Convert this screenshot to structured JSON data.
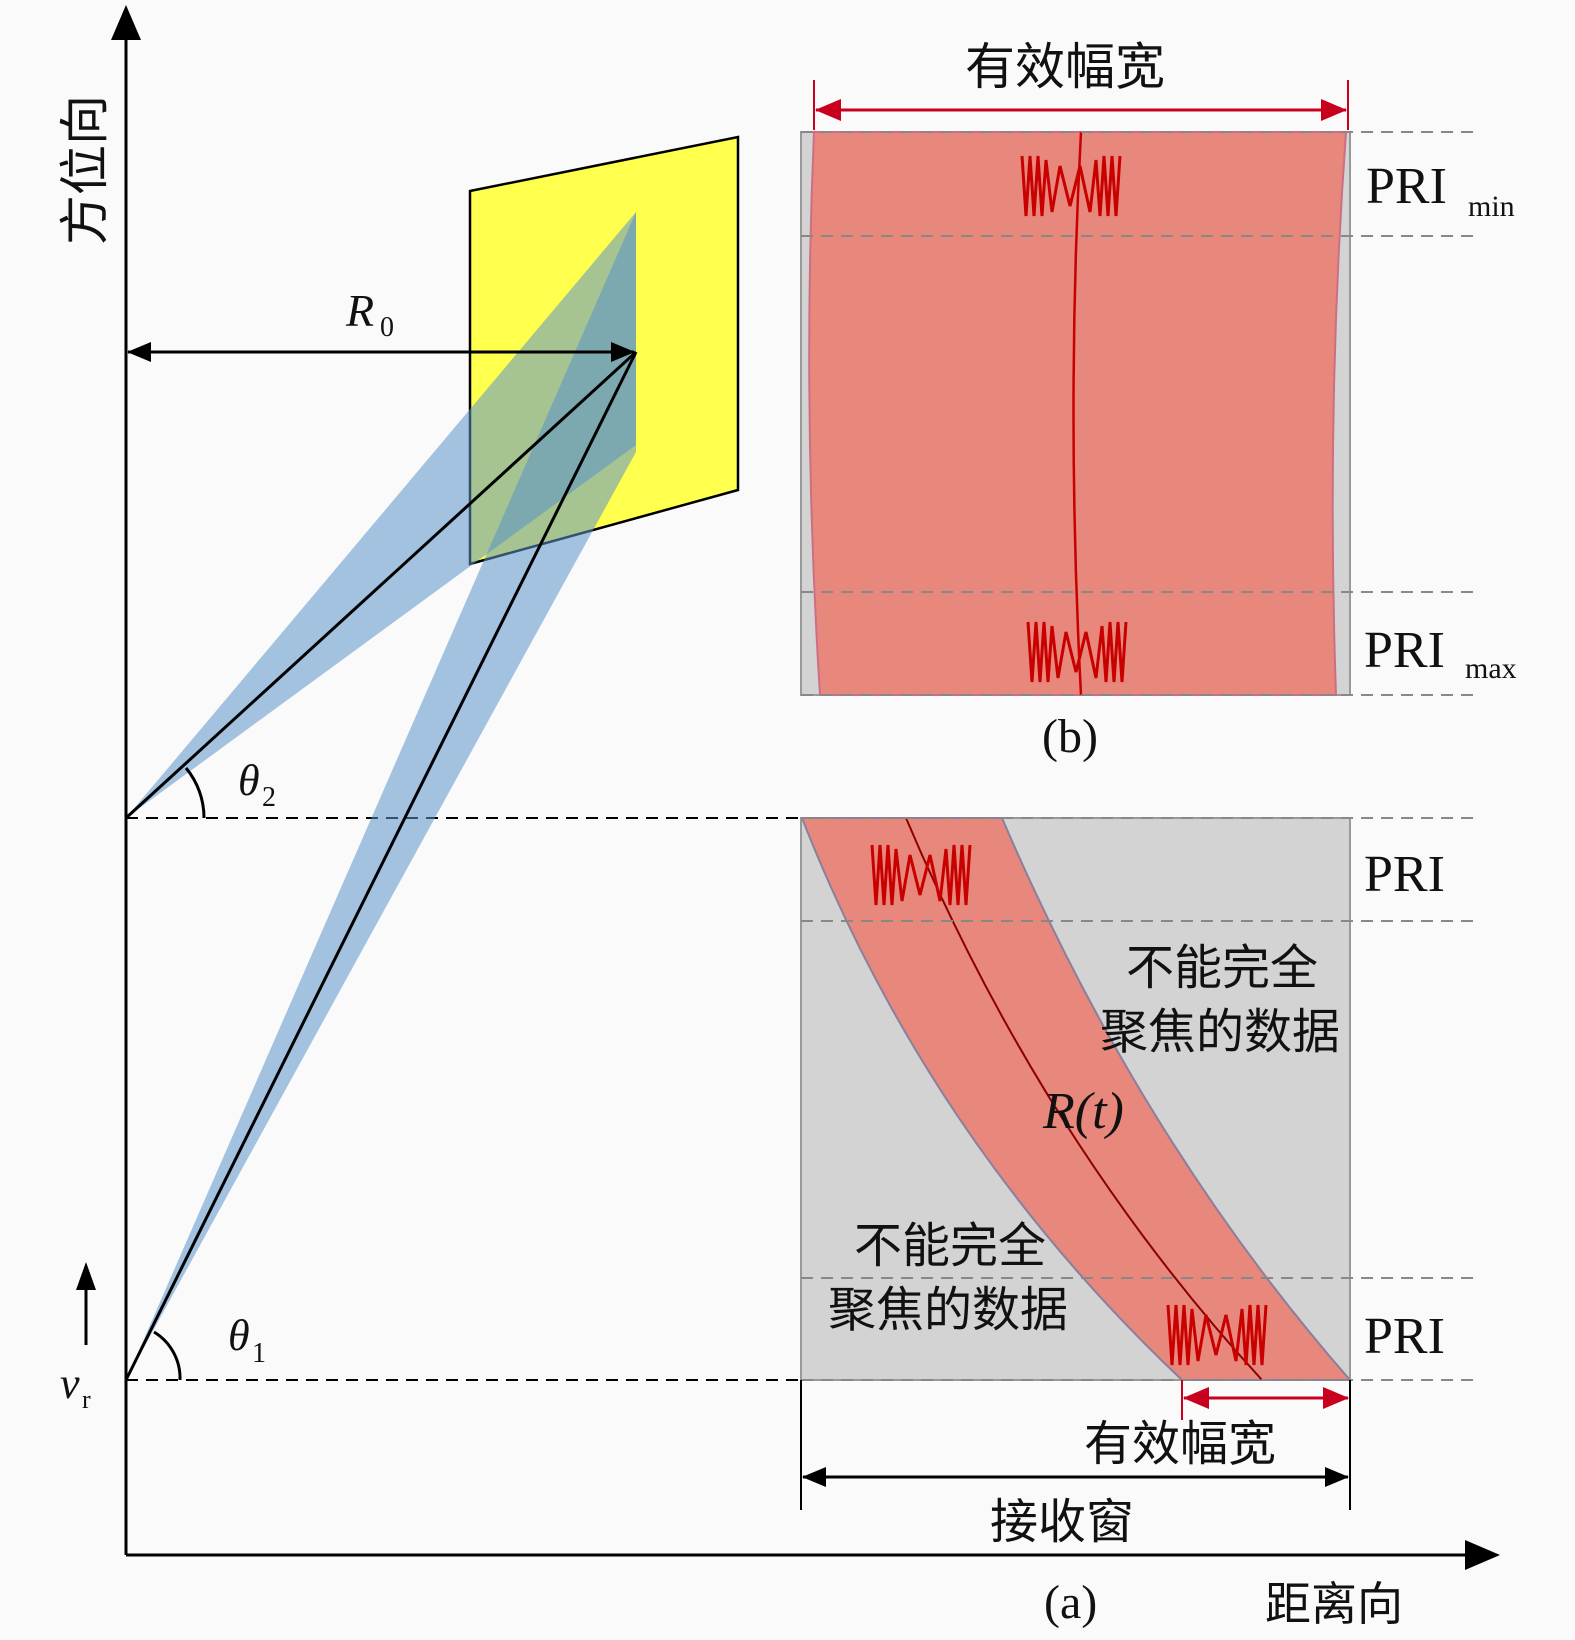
{
  "axes": {
    "y_label": "方位向",
    "x_label": "距离向",
    "velocity_symbol": "v",
    "velocity_sub": "r"
  },
  "geometry_labels": {
    "r0": "R",
    "r0_sub": "0",
    "theta1": "θ",
    "theta1_sub": "1",
    "theta2": "θ",
    "theta2_sub": "2",
    "range_history": "R(t)"
  },
  "panel_b": {
    "top_label": "有效幅宽",
    "pri_min": "PRI",
    "pri_min_sub": "min",
    "pri_max": "PRI",
    "pri_max_sub": "max",
    "caption": "(b)"
  },
  "panel_a": {
    "pri_top": "PRI",
    "pri_bottom": "PRI",
    "unfocused_right_line1": "不能完全",
    "unfocused_right_line2": "聚焦的数据",
    "unfocused_left_line1": "不能完全",
    "unfocused_left_line2": "聚焦的数据",
    "effective_swath": "有效幅宽",
    "receive_window": "接收窗",
    "caption": "(a)"
  },
  "colors": {
    "footprint": "#ffff4d",
    "beam": "#7aa9d6",
    "signal_band": "#e8877c",
    "window_gray": "#d3d3d3",
    "pulse_red": "#c80000",
    "arrow_red": "#c8001e"
  }
}
